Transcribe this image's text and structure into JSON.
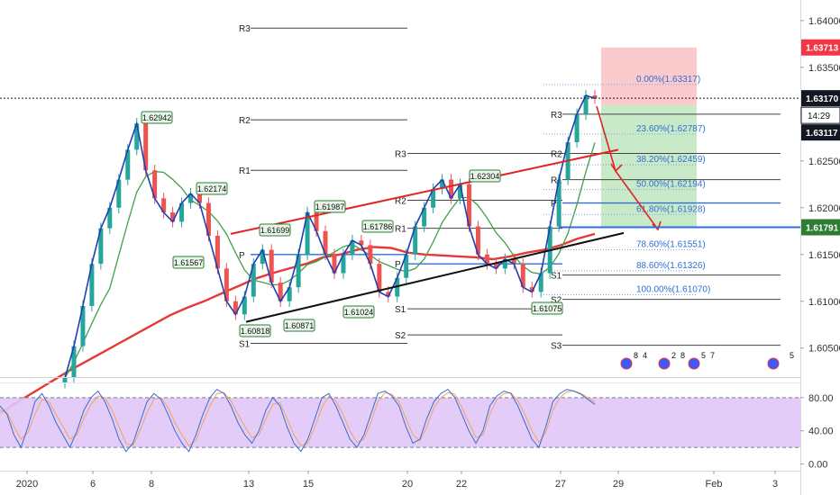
{
  "chart_data": {
    "type": "line",
    "price_axis": {
      "range": [
        1.6018,
        1.6422
      ],
      "ticks": [
        "1.64000",
        "1.63500",
        "1.63000",
        "1.62500",
        "1.62000",
        "1.61500",
        "1.61000",
        "1.60500"
      ],
      "tick_values": [
        1.64,
        1.635,
        1.63,
        1.625,
        1.62,
        1.615,
        1.61,
        1.605
      ]
    },
    "price_tags": [
      {
        "label": "1.63713",
        "value": 1.63713,
        "color": "#f23645"
      },
      {
        "label": "1.63170",
        "value": 1.6317,
        "color": "#131722"
      },
      {
        "label": "1.63117",
        "value": 1.63117,
        "color": "#131722"
      },
      {
        "label": "1.61791",
        "value": 1.61791,
        "color": "#2e7d32"
      }
    ],
    "countdown": "14:29",
    "x_axis": {
      "ticks": [
        "2020",
        "6",
        "8",
        "13",
        "15",
        "20",
        "22",
        "27",
        "29",
        "Feb",
        "3"
      ]
    },
    "price_series": [
      1.6018,
      1.6052,
      1.6095,
      1.614,
      1.6178,
      1.62,
      1.623,
      1.6262,
      1.629,
      1.624,
      1.621,
      1.6195,
      1.6185,
      1.6205,
      1.6215,
      1.6205,
      1.617,
      1.6135,
      1.61,
      1.6086,
      1.6105,
      1.614,
      1.6155,
      1.612,
      1.61,
      1.6115,
      1.615,
      1.6195,
      1.6175,
      1.615,
      1.613,
      1.615,
      1.6165,
      1.616,
      1.614,
      1.611,
      1.6105,
      1.6125,
      1.615,
      1.618,
      1.62,
      1.622,
      1.623,
      1.621,
      1.6225,
      1.618,
      1.615,
      1.614,
      1.6135,
      1.6145,
      1.614,
      1.6115,
      1.611,
      1.613,
      1.618,
      1.623,
      1.627,
      1.63,
      1.632,
      1.6317
    ],
    "ma_red": [
      1.598,
      1.5992,
      1.6003,
      1.6014,
      1.6025,
      1.6035,
      1.6045,
      1.6055,
      1.6065,
      1.6075,
      1.6085,
      1.6093,
      1.61,
      1.6108,
      1.6116,
      1.6124,
      1.613,
      1.6135,
      1.614,
      1.6147,
      1.615,
      1.6155,
      1.6158,
      1.6157,
      1.6152,
      1.615,
      1.6149,
      1.6148,
      1.6147,
      1.6145,
      1.6148,
      1.6152,
      1.6155,
      1.616,
      1.6167,
      1.6172
    ],
    "pivots_left": [
      {
        "label": "R3",
        "value": 1.6392
      },
      {
        "label": "R2",
        "value": 1.6294
      },
      {
        "label": "R1",
        "value": 1.624
      },
      {
        "label": "P",
        "value": 1.615
      },
      {
        "label": "S1",
        "value": 1.6055
      }
    ],
    "pivots_mid": [
      {
        "label": "R3",
        "value": 1.6258
      },
      {
        "label": "R2",
        "value": 1.6208
      },
      {
        "label": "R1",
        "value": 1.6178
      },
      {
        "label": "P",
        "value": 1.614
      },
      {
        "label": "S1",
        "value": 1.6092
      },
      {
        "label": "S2",
        "value": 1.6064
      }
    ],
    "pivots_right": [
      {
        "label": "R3",
        "value": 1.63
      },
      {
        "label": "R2",
        "value": 1.6258
      },
      {
        "label": "R1",
        "value": 1.623
      },
      {
        "label": "P",
        "value": 1.6205
      },
      {
        "label": "S1",
        "value": 1.6128
      },
      {
        "label": "S2",
        "value": 1.6102
      },
      {
        "label": "S3",
        "value": 1.6053
      }
    ],
    "fibonacci": [
      {
        "label": "0.00%(1.63317)",
        "value": 1.63317
      },
      {
        "label": "23.60%(1.62787)",
        "value": 1.62787
      },
      {
        "label": "38.20%(1.62459)",
        "value": 1.62459
      },
      {
        "label": "50.00%(1.62194)",
        "value": 1.62194
      },
      {
        "label": "61.80%(1.61928)",
        "value": 1.61928
      },
      {
        "label": "78.60%(1.61551)",
        "value": 1.61551
      },
      {
        "label": "88.60%(1.61326)",
        "value": 1.61326
      },
      {
        "label": "100.00%(1.61070)",
        "value": 1.6107
      }
    ],
    "swing_labels": [
      "1.62942",
      "1.62174",
      "1.61567",
      "1.61987",
      "1.61699",
      "1.61786",
      "1.62304",
      "1.60818",
      "1.60871",
      "1.61024",
      "1.61075"
    ],
    "trendlines": [
      {
        "name": "upper-channel",
        "from": 1.6172,
        "to": 1.6262
      },
      {
        "name": "lower-channel",
        "from": 1.6078,
        "to": 1.6173
      }
    ],
    "position": {
      "stop": 1.63713,
      "entry": 1.6317,
      "target": 1.61791
    },
    "stoch_axis": {
      "ticks": [
        "80.00",
        "40.00",
        "0.00"
      ],
      "tick_values": [
        80,
        40,
        0
      ],
      "band": [
        20,
        80
      ],
      "range": [
        -7,
        95
      ]
    },
    "stoch_k": [
      70,
      60,
      35,
      20,
      45,
      75,
      85,
      70,
      50,
      35,
      20,
      40,
      65,
      80,
      88,
      75,
      55,
      30,
      15,
      25,
      50,
      75,
      85,
      78,
      60,
      40,
      25,
      15,
      35,
      60,
      80,
      90,
      85,
      70,
      50,
      35,
      25,
      40,
      65,
      80,
      70,
      45,
      25,
      15,
      30,
      55,
      80,
      85,
      70,
      50,
      30,
      20,
      35,
      60,
      85,
      88,
      82,
      70,
      45,
      25,
      30,
      55,
      75,
      85,
      90,
      80,
      60,
      40,
      25,
      40,
      70,
      82,
      88,
      85,
      70,
      50,
      30,
      20,
      45,
      75,
      85,
      90,
      88,
      84,
      78,
      72
    ],
    "stoch_d": [
      65,
      62,
      45,
      30,
      38,
      60,
      78,
      75,
      60,
      45,
      30,
      35,
      55,
      72,
      82,
      80,
      65,
      45,
      25,
      22,
      40,
      62,
      78,
      80,
      68,
      50,
      35,
      22,
      28,
      50,
      70,
      85,
      86,
      76,
      60,
      45,
      32,
      35,
      55,
      72,
      74,
      55,
      35,
      22,
      25,
      45,
      68,
      82,
      76,
      60,
      40,
      26,
      30,
      50,
      75,
      86,
      84,
      75,
      55,
      35,
      28,
      45,
      68,
      80,
      86,
      84,
      68,
      50,
      32,
      35,
      60,
      78,
      85,
      86,
      76,
      60,
      40,
      26,
      38,
      65,
      80,
      87,
      88,
      85,
      80,
      75
    ],
    "event_markers": [
      {
        "x_index": 0,
        "count": "8",
        "extra": "4"
      },
      {
        "x_index": 1,
        "count": "2",
        "extra": "8"
      },
      {
        "x_index": 2,
        "count": "5",
        "extra": "7"
      },
      {
        "x_index": 3,
        "count": "",
        "extra": "5"
      }
    ]
  }
}
